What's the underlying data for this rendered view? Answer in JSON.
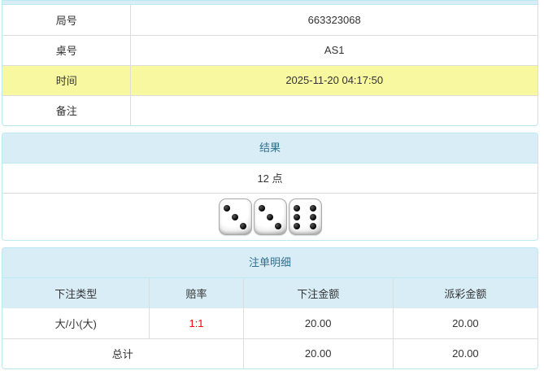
{
  "colors": {
    "panel_border": "#bce8f1",
    "heading_bg": "#d9edf7",
    "heading_text": "#31708f",
    "cell_border": "#dddddd",
    "highlight_row_bg": "#f8f8a0",
    "odds_red": "#ff0000",
    "body_text": "#333333"
  },
  "info_table": {
    "rows": [
      {
        "label": "局号",
        "value": "663323068",
        "highlight": false
      },
      {
        "label": "桌号",
        "value": "AS1",
        "highlight": false
      },
      {
        "label": "时间",
        "value": "2025-11-20 04:17:50",
        "highlight": true
      },
      {
        "label": "备注",
        "value": "",
        "highlight": false
      }
    ]
  },
  "result_panel": {
    "title": "结果",
    "points_text": "12 点",
    "dice": [
      3,
      3,
      6
    ]
  },
  "bets_panel": {
    "title": "注单明细",
    "columns": [
      "下注类型",
      "赔率",
      "下注金额",
      "派彩金额"
    ],
    "rows": [
      {
        "type": "大/小(大)",
        "odds": "1:1",
        "bet_amount": "20.00",
        "payout": "20.00"
      }
    ],
    "total": {
      "label": "总计",
      "bet_amount": "20.00",
      "payout": "20.00"
    }
  }
}
